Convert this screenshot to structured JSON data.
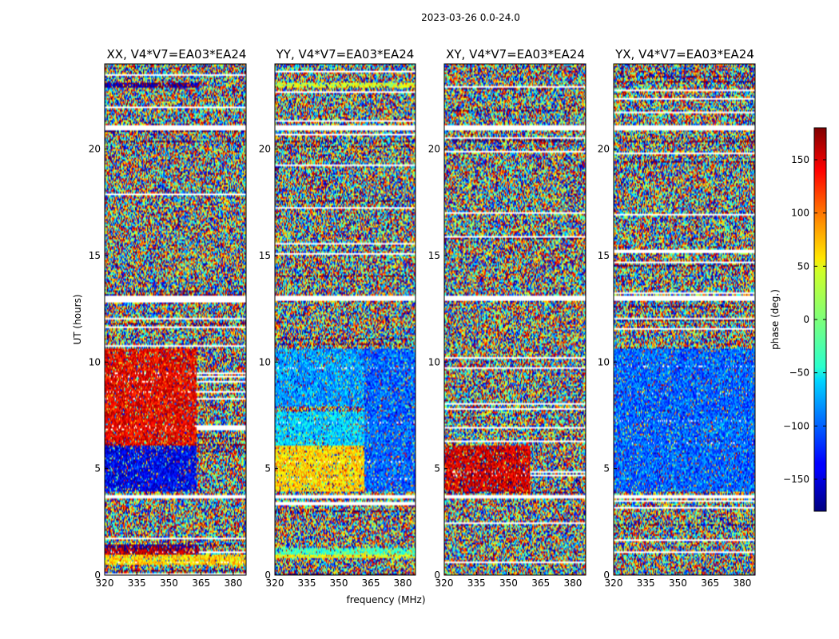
{
  "figure": {
    "suptitle": "2023-03-26 0.0-24.0"
  },
  "chart_data": [
    {
      "type": "heatmap",
      "title": "XX, V4*V7=EA03*EA24",
      "xlabel": "",
      "ylabel": "UT (hours)",
      "xlim": [
        320,
        386
      ],
      "ylim": [
        0,
        24
      ],
      "xticks": [
        320,
        335,
        350,
        365,
        380
      ],
      "yticks": [
        0,
        5,
        10,
        15,
        20
      ],
      "regions": [
        {
          "y": [
            0.5,
            0.95
          ],
          "x": [
            320,
            386
          ],
          "value": 60
        },
        {
          "y": [
            1.0,
            1.3
          ],
          "x": [
            320,
            364
          ],
          "value": 160
        },
        {
          "y": [
            1.3,
            1.4
          ],
          "x": [
            320,
            364
          ],
          "value": -170
        },
        {
          "y": [
            3.9,
            6.1
          ],
          "x": [
            320,
            363
          ],
          "value": -140
        },
        {
          "y": [
            6.1,
            10.6
          ],
          "x": [
            320,
            363
          ],
          "value": 140
        },
        {
          "y": [
            22.9,
            23.1
          ],
          "x": [
            320,
            364
          ],
          "value": -170
        }
      ],
      "blank_bands": [
        [
          3.6,
          3.8
        ],
        [
          12.9,
          13.1
        ],
        [
          20.9,
          21.1
        ]
      ],
      "colorbar_label": ""
    },
    {
      "type": "heatmap",
      "title": "YY, V4*V7=EA03*EA24",
      "xlabel": "",
      "ylabel": "",
      "xlim": [
        320,
        386
      ],
      "ylim": [
        0,
        24
      ],
      "xticks": [
        320,
        335,
        350,
        365,
        380
      ],
      "yticks": [
        0,
        5,
        10,
        15,
        20
      ],
      "regions": [
        {
          "y": [
            0.8,
            1.0
          ],
          "x": [
            320,
            386
          ],
          "value": 40
        },
        {
          "y": [
            1.0,
            1.3
          ],
          "x": [
            320,
            386
          ],
          "value": -20
        },
        {
          "y": [
            3.9,
            6.1
          ],
          "x": [
            320,
            362
          ],
          "value": 60
        },
        {
          "y": [
            6.1,
            7.7
          ],
          "x": [
            320,
            362
          ],
          "value": -60
        },
        {
          "y": [
            7.9,
            10.6
          ],
          "x": [
            320,
            362
          ],
          "value": -80
        },
        {
          "y": [
            3.9,
            10.6
          ],
          "x": [
            362,
            386
          ],
          "value": -100
        },
        {
          "y": [
            22.9,
            23.1
          ],
          "x": [
            320,
            386
          ],
          "value": 30
        }
      ],
      "blank_bands": [
        [
          3.6,
          3.8
        ],
        [
          12.9,
          13.1
        ],
        [
          20.9,
          21.1
        ]
      ],
      "colorbar_label": ""
    },
    {
      "type": "heatmap",
      "title": "XY, V4*V7=EA03*EA24",
      "xlabel": "",
      "ylabel": "",
      "xlim": [
        320,
        386
      ],
      "ylim": [
        0,
        24
      ],
      "xticks": [
        320,
        335,
        350,
        365,
        380
      ],
      "yticks": [
        0,
        5,
        10,
        15,
        20
      ],
      "regions": [
        {
          "y": [
            3.9,
            6.1
          ],
          "x": [
            320,
            360
          ],
          "value": 150
        }
      ],
      "blank_bands": [
        [
          3.6,
          3.8
        ],
        [
          12.9,
          13.1
        ],
        [
          20.9,
          21.1
        ]
      ],
      "colorbar_label": ""
    },
    {
      "type": "heatmap",
      "title": "YX, V4*V7=EA03*EA24",
      "xlabel": "",
      "ylabel": "",
      "xlim": [
        320,
        386
      ],
      "ylim": [
        0,
        24
      ],
      "xticks": [
        320,
        335,
        350,
        365,
        380
      ],
      "yticks": [
        0,
        5,
        10,
        15,
        20
      ],
      "regions": [
        {
          "y": [
            3.9,
            10.6
          ],
          "x": [
            320,
            386
          ],
          "value": -100
        }
      ],
      "blank_bands": [
        [
          3.6,
          3.8
        ],
        [
          12.9,
          13.1
        ],
        [
          20.9,
          21.1
        ]
      ],
      "colorbar_label": ""
    }
  ],
  "shared": {
    "xlabel": "frequency (MHz)"
  },
  "colorbar": {
    "label": "phase (deg.)",
    "colormap": "jet",
    "vmin": -180,
    "vmax": 180,
    "ticks": [
      150,
      100,
      50,
      0,
      -50,
      -100,
      -150
    ],
    "tick_labels": [
      "150",
      "100",
      "50",
      "0",
      "−50",
      "−100",
      "−150"
    ]
  }
}
